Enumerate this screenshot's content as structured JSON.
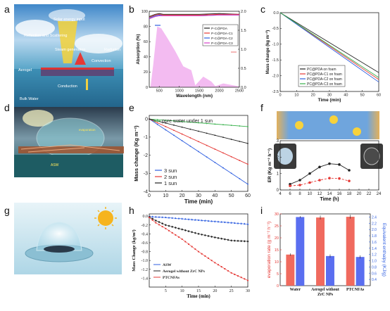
{
  "panel_letters": [
    "a",
    "b",
    "c",
    "d",
    "e",
    "f",
    "g",
    "h",
    "i"
  ],
  "panel_a": {
    "labels": [
      "Solar energy input",
      "Reflection and Scattering",
      "Radiation",
      "Steam generation",
      "Convection",
      "Aerogel",
      "Conduction",
      "Bulk Water"
    ]
  },
  "panel_d": {
    "labels": [
      "evaporation",
      "ASW"
    ]
  },
  "colors": {
    "black": "#222222",
    "red": "#e53935",
    "blue": "#2f5fe0",
    "magenta": "#d63ec9",
    "green": "#36b04a",
    "pink": "#f2b4f0"
  },
  "chart_data": [
    {
      "id": "b",
      "type": "line",
      "xlabel": "Wavelength (nm)",
      "ylabel": "Absorption (%)",
      "xlim": [
        250,
        2500
      ],
      "ylim": [
        0,
        100
      ],
      "y2lim": [
        0.0,
        2.0
      ],
      "xticks": [
        500,
        1000,
        1500,
        2000,
        2500
      ],
      "yticks": [
        0,
        20,
        40,
        60,
        80,
        100
      ],
      "y2ticks": [
        0.0,
        0.5,
        1.0,
        1.5,
        2.0
      ],
      "legend": "top-right",
      "series": [
        {
          "name": "P-C@PDA",
          "color": "#222222",
          "x": [
            250,
            400,
            500,
            600,
            1000,
            1500,
            2000,
            2500
          ],
          "y": [
            93,
            96,
            97,
            96,
            96,
            96,
            97,
            96
          ]
        },
        {
          "name": "P-C@PDA-C1",
          "color": "#e53935",
          "x": [
            250,
            400,
            500,
            600,
            1000,
            1500,
            2000,
            2500
          ],
          "y": [
            92,
            95,
            96,
            95,
            95,
            95,
            96,
            96
          ]
        },
        {
          "name": "P-C@PDA-C2",
          "color": "#2f5fe0",
          "x": [
            250,
            400,
            500,
            600,
            1000,
            1500,
            2000,
            2500
          ],
          "y": [
            91,
            94,
            95,
            94,
            94,
            94,
            95,
            95
          ]
        },
        {
          "name": "P-C@PDA-C3",
          "color": "#d63ec9",
          "x": [
            250,
            400,
            500,
            600,
            1000,
            1500,
            2000,
            2500
          ],
          "y": [
            90,
            93,
            94,
            94,
            94,
            94,
            95,
            95
          ]
        }
      ],
      "solar_spectrum": {
        "x": [
          280,
          350,
          450,
          550,
          700,
          900,
          1000,
          1100,
          1300,
          1400,
          1600,
          1800,
          1900,
          2100,
          2300,
          2500
        ],
        "y": [
          0.0,
          0.6,
          1.6,
          1.55,
          1.3,
          0.95,
          0.75,
          0.55,
          0.45,
          0.05,
          0.28,
          0.15,
          0.03,
          0.1,
          0.06,
          0.02
        ]
      }
    },
    {
      "id": "c",
      "type": "line",
      "xlabel": "Time (min)",
      "ylabel": "Mass change (kg m⁻²)",
      "xlim": [
        0,
        60
      ],
      "ylim": [
        -2.5,
        0
      ],
      "xticks": [
        0,
        10,
        20,
        30,
        40,
        50,
        60
      ],
      "yticks": [
        0.0,
        -0.5,
        -1.0,
        -1.5,
        -2.0,
        -2.5
      ],
      "legend": "lower-left",
      "series": [
        {
          "name": "PC@PDA on foam",
          "color": "#222222",
          "x": [
            0,
            60
          ],
          "y": [
            0,
            -1.9
          ]
        },
        {
          "name": "PC@PDA-C1 on foam",
          "color": "#e53935",
          "x": [
            0,
            60
          ],
          "y": [
            0,
            -2.12
          ]
        },
        {
          "name": "PC@PDA-C2 on foam",
          "color": "#2f5fe0",
          "x": [
            0,
            60
          ],
          "y": [
            0,
            -2.2
          ]
        },
        {
          "name": "PC@PDA-C3 on foam",
          "color": "#36b04a",
          "x": [
            0,
            60
          ],
          "y": [
            0,
            -2.06
          ]
        }
      ]
    },
    {
      "id": "e",
      "type": "line",
      "xlabel": "Time (min)",
      "ylabel": "Mass change (Kg m⁻²)",
      "xlim": [
        0,
        60
      ],
      "ylim": [
        -4,
        0.2
      ],
      "xticks": [
        0,
        10,
        20,
        30,
        40,
        50,
        60
      ],
      "yticks": [
        0,
        -1,
        -2,
        -3,
        -4
      ],
      "series": [
        {
          "name": "pure water under 1 sun",
          "color": "#36b04a",
          "x": [
            0,
            60
          ],
          "y": [
            0,
            -0.42
          ]
        },
        {
          "name": "3 sun",
          "color": "#2f5fe0",
          "x": [
            0,
            60
          ],
          "y": [
            0,
            -3.6
          ]
        },
        {
          "name": "2 sun",
          "color": "#e53935",
          "x": [
            0,
            60
          ],
          "y": [
            0,
            -2.5
          ]
        },
        {
          "name": "1 sun",
          "color": "#222222",
          "x": [
            0,
            60
          ],
          "y": [
            0,
            -1.35
          ]
        }
      ]
    },
    {
      "id": "f",
      "type": "line",
      "xlabel": "Time (h)",
      "ylabel": "ER (Kg m⁻² h⁻¹)",
      "xlim": [
        4,
        24
      ],
      "ylim": [
        0,
        3
      ],
      "xticks": [
        4,
        6,
        8,
        10,
        12,
        14,
        16,
        18,
        20,
        22,
        24
      ],
      "yticks": [
        0,
        1,
        2,
        3
      ],
      "series": [
        {
          "name": "",
          "color": "#222222",
          "dashed": false,
          "x": [
            6,
            8,
            10,
            12,
            14,
            16,
            18
          ],
          "y": [
            0.35,
            0.6,
            1.0,
            1.4,
            1.6,
            1.55,
            1.2
          ]
        },
        {
          "name": "",
          "color": "#e53935",
          "dashed": true,
          "x": [
            6,
            8,
            10,
            12,
            14,
            16,
            18
          ],
          "y": [
            0.25,
            0.3,
            0.45,
            0.6,
            0.72,
            0.7,
            0.55
          ]
        }
      ]
    },
    {
      "id": "h",
      "type": "line",
      "xlabel": "Time (min)",
      "ylabel": "Mass Change (kg/m²)",
      "xlim": [
        0,
        30
      ],
      "ylim": [
        -1.6,
        0.05
      ],
      "xticks": [
        5,
        10,
        15,
        20,
        25,
        30
      ],
      "yticks": [
        0.0,
        -0.2,
        -0.4,
        -0.6,
        -0.8,
        -1.0,
        -1.2,
        -1.4
      ],
      "legend": "lower-left",
      "series": [
        {
          "name": "ASW",
          "color": "#2f5fe0",
          "marker": "triangle",
          "x": [
            0,
            5,
            10,
            15,
            20,
            25,
            30
          ],
          "y": [
            -0.01,
            -0.03,
            -0.06,
            -0.09,
            -0.12,
            -0.15,
            -0.18
          ]
        },
        {
          "name": "Aerogel without ZrC NPs",
          "color": "#222222",
          "marker": "star",
          "x": [
            0,
            2,
            5,
            10,
            15,
            20,
            25,
            30
          ],
          "y": [
            -0.02,
            -0.1,
            -0.2,
            -0.3,
            -0.4,
            -0.48,
            -0.55,
            -0.57
          ]
        },
        {
          "name": "PTCNFAs",
          "color": "#e53935",
          "marker": "circle",
          "x": [
            0,
            2,
            5,
            10,
            15,
            20,
            25,
            30
          ],
          "y": [
            -0.03,
            -0.15,
            -0.28,
            -0.52,
            -0.8,
            -1.05,
            -1.28,
            -1.45
          ]
        }
      ]
    },
    {
      "id": "i",
      "type": "bar",
      "categories": [
        "Water",
        "Aerogel without ZrC NPs",
        "PTCNFAs"
      ],
      "ylabel": "evaporation rate (g m⁻² h⁻¹)",
      "y2label": "Equivalent enthalpy (KJ/g)",
      "ylim": [
        0,
        30
      ],
      "y2lim": [
        0.2,
        2.5
      ],
      "yticks": [
        0,
        5,
        10,
        15,
        20,
        25,
        30
      ],
      "y2ticks": [
        0.4,
        0.6,
        0.8,
        1.0,
        1.2,
        1.4,
        1.6,
        1.8,
        2.0,
        2.2,
        2.4
      ],
      "series": [
        {
          "name": "evaporation rate",
          "color": "#f06a5e",
          "values": [
            13.0,
            28.5,
            28.8
          ],
          "errors": [
            0.5,
            0.8,
            0.8
          ]
        },
        {
          "name": "Equivalent enthalpy",
          "color": "#5a6ef0",
          "values": [
            2.4,
            1.15,
            1.12
          ],
          "errors": [
            0.03,
            0.05,
            0.05
          ]
        }
      ]
    }
  ]
}
